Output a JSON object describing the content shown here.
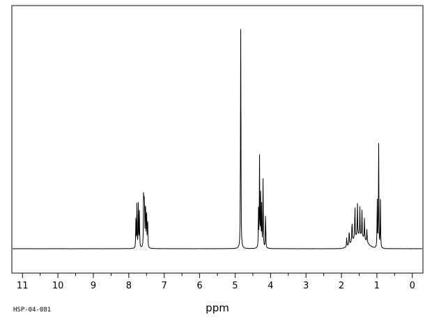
{
  "sample_id": "HSP-04-081",
  "chart_data": {
    "type": "line",
    "title": "",
    "xlabel": "ppm",
    "ylabel": "",
    "xlim": [
      11.3,
      -0.3
    ],
    "x_reversed": true,
    "ylim": [
      0,
      1.0
    ],
    "baseline": 0.1,
    "grid": false,
    "ticks": [
      11,
      10,
      9,
      8,
      7,
      6,
      5,
      4,
      3,
      2,
      1,
      0
    ],
    "tick_labels": [
      "11",
      "10",
      "9",
      "8",
      "7",
      "6",
      "5",
      "4",
      "3",
      "2",
      "1",
      "0"
    ],
    "series": [
      {
        "values": [
          {
            "ppm": 7.8,
            "intensity": 0.13
          },
          {
            "ppm": 7.77,
            "intensity": 0.2
          },
          {
            "ppm": 7.73,
            "intensity": 0.21
          },
          {
            "ppm": 7.7,
            "intensity": 0.18
          },
          {
            "ppm": 7.58,
            "intensity": 0.34
          },
          {
            "ppm": 7.56,
            "intensity": 0.28
          },
          {
            "ppm": 7.53,
            "intensity": 0.27
          },
          {
            "ppm": 7.5,
            "intensity": 0.22
          },
          {
            "ppm": 7.47,
            "intensity": 0.16
          },
          {
            "ppm": 4.84,
            "intensity": 0.98
          },
          {
            "ppm": 4.85,
            "intensity": 0.19
          },
          {
            "ppm": 4.34,
            "intensity": 0.17
          },
          {
            "ppm": 4.31,
            "intensity": 0.41
          },
          {
            "ppm": 4.28,
            "intensity": 0.24
          },
          {
            "ppm": 4.25,
            "intensity": 0.2
          },
          {
            "ppm": 4.21,
            "intensity": 0.35
          },
          {
            "ppm": 4.14,
            "intensity": 0.19
          },
          {
            "ppm": 1.85,
            "intensity": 0.05
          },
          {
            "ppm": 1.78,
            "intensity": 0.08
          },
          {
            "ppm": 1.7,
            "intensity": 0.12
          },
          {
            "ppm": 1.62,
            "intensity": 0.17
          },
          {
            "ppm": 1.55,
            "intensity": 0.16
          },
          {
            "ppm": 1.48,
            "intensity": 0.13
          },
          {
            "ppm": 1.42,
            "intensity": 0.12
          },
          {
            "ppm": 1.35,
            "intensity": 0.1
          },
          {
            "ppm": 1.28,
            "intensity": 0.07
          },
          {
            "ppm": 0.99,
            "intensity": 0.24
          },
          {
            "ppm": 0.95,
            "intensity": 0.5
          },
          {
            "ppm": 0.9,
            "intensity": 0.22
          }
        ]
      }
    ]
  }
}
